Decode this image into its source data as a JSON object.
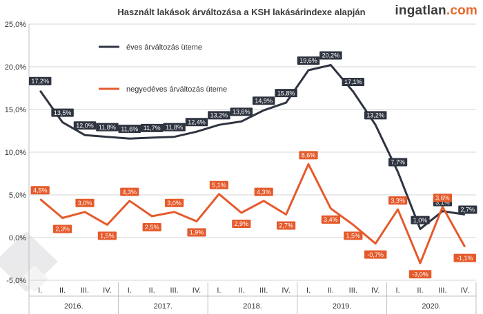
{
  "chart_data": {
    "type": "line",
    "title": "Használt lakások árváltozása a KSH lakásárindexe alapján",
    "brand": {
      "name": "ingatlan",
      "suffix": ".com"
    },
    "ylim": [
      -5,
      25
    ],
    "y_ticks": [
      -5,
      0,
      5,
      10,
      15,
      20,
      25
    ],
    "y_tick_labels": [
      "-5,0%",
      "0,0%",
      "5,0%",
      "10,0%",
      "15,0%",
      "20,0%",
      "25,0%"
    ],
    "grid": true,
    "x_groups": [
      {
        "label": "2016.",
        "quarters": [
          "I.",
          "II.",
          "III.",
          "IV."
        ]
      },
      {
        "label": "2017.",
        "quarters": [
          "I.",
          "II.",
          "III.",
          "IV."
        ]
      },
      {
        "label": "2018.",
        "quarters": [
          "I.",
          "II.",
          "III.",
          "IV."
        ]
      },
      {
        "label": "2019.",
        "quarters": [
          "I.",
          "II.",
          "III.",
          "IV."
        ]
      },
      {
        "label": "2020.",
        "quarters": [
          "I.",
          "II.",
          "III.",
          "IV."
        ]
      }
    ],
    "series": [
      {
        "name": "éves árváltozás üteme",
        "color": "#2e3440",
        "values": [
          17.2,
          13.5,
          12.0,
          11.8,
          11.6,
          11.7,
          11.8,
          12.4,
          13.2,
          13.6,
          14.9,
          15.8,
          19.6,
          20.2,
          17.1,
          13.2,
          7.7,
          1.0,
          3.1,
          2.7
        ],
        "labels": [
          "17,2%",
          "13,5%",
          "12,0%",
          "11,8%",
          "11,6%",
          "11,7%",
          "11,8%",
          "12,4%",
          "13,2%",
          "13,6%",
          "14,9%",
          "15,8%",
          "19,6%",
          "20,2%",
          "17,1%",
          "13,2%",
          "7,7%",
          "1,0%",
          "3,1%",
          "2,7%"
        ]
      },
      {
        "name": "negyedéves árváltozás üteme",
        "color": "#e55a2b",
        "values": [
          4.5,
          2.3,
          3.0,
          1.5,
          4.3,
          2.5,
          3.0,
          1.9,
          5.1,
          2.9,
          4.3,
          2.7,
          8.6,
          3.4,
          1.5,
          -0.7,
          3.3,
          -3.0,
          3.6,
          -1.1
        ],
        "labels": [
          "4,5%",
          "2,3%",
          "3,0%",
          "1,5%",
          "4,3%",
          "2,5%",
          "3,0%",
          "1,9%",
          "5,1%",
          "2,9%",
          "4,3%",
          "2,7%",
          "8,6%",
          "3,4%",
          "1,5%",
          "-0,7%",
          "3,3%",
          "-3,0%",
          "3,6%",
          "-1,1%"
        ]
      }
    ]
  }
}
